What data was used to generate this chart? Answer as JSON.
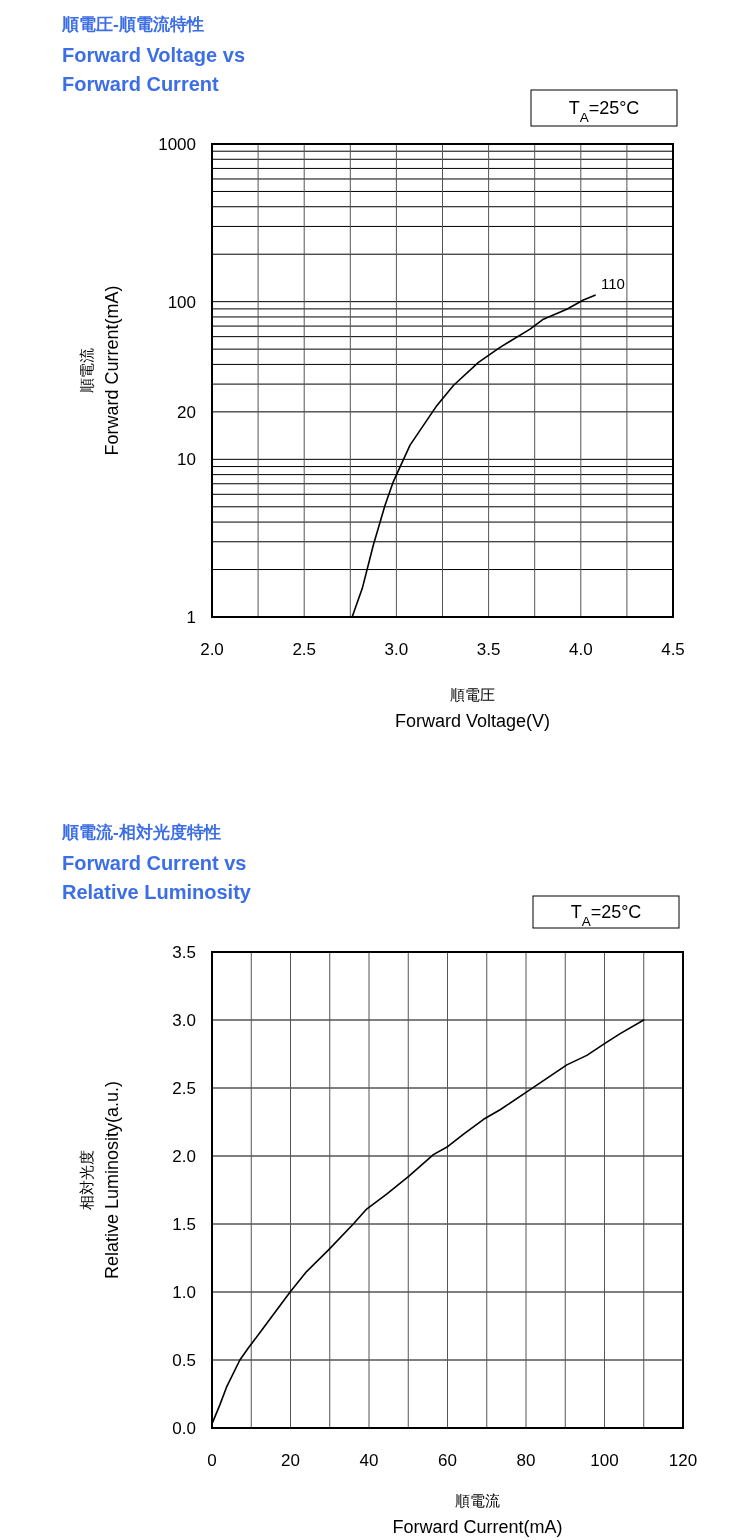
{
  "chart_data": [
    {
      "type": "line",
      "title": "順電圧-順電流特性",
      "subtitle": "Forward Voltage vs\nForward Current",
      "xlabel": "順電圧\nForward Voltage(V)",
      "ylabel": "順電流\nForward Current(mA)",
      "annotations": [
        "T$_{A}$=25°C",
        {
          "text": "110",
          "x": 4.077,
          "y": 110
        }
      ],
      "log": "y",
      "grid": true,
      "color": "#000000",
      "xlim": [
        2,
        4.5
      ],
      "xticks": [
        {
          "value": 2,
          "label": "2.0"
        },
        {
          "value": 2.5,
          "label": "2.5"
        },
        {
          "value": 3,
          "label": "3.0"
        },
        {
          "value": 3.5,
          "label": "3.5"
        },
        {
          "value": 4,
          "label": "4.0"
        },
        {
          "value": 4.5,
          "label": "4.5"
        }
      ],
      "ylim": [
        1,
        1000
      ],
      "yticks": [
        1,
        10,
        20,
        100,
        1000
      ],
      "x": [
        2.76,
        2.815,
        2.875,
        2.938,
        2.983,
        3.02,
        3.074,
        3.219,
        3.309,
        3.445,
        3.562,
        3.725,
        3.797,
        3.924,
        4.014,
        4.077
      ],
      "values": [
        1,
        1.52,
        2.86,
        5.1,
        7.2,
        8.95,
        12.3,
        21.9,
        29.4,
        41.2,
        51.3,
        67,
        77.4,
        89.5,
        102.5,
        110
      ]
    },
    {
      "type": "line",
      "title": "順電流-相対光度特性",
      "subtitle": "Forward Current vs\nRelative Luminosity",
      "xlabel": "順電流\nForward Current(mA)",
      "ylabel": "相対光度\nRelative Luminosity(a.u.)",
      "annotations": [
        "T$_{A}$=25°C"
      ],
      "grid": true,
      "color": "#000000",
      "xlim": [
        0,
        120
      ],
      "xticks": [
        0,
        20,
        40,
        60,
        80,
        100,
        120
      ],
      "ylim": [
        0,
        3.5
      ],
      "yticks": [
        {
          "value": 0,
          "label": "0.0"
        },
        {
          "value": 0.5,
          "label": "0.5"
        },
        {
          "value": 1,
          "label": "1.0"
        },
        {
          "value": 1.5,
          "label": "1.5"
        },
        {
          "value": 2,
          "label": "2.0"
        },
        {
          "value": 2.5,
          "label": "2.5"
        },
        {
          "value": 3,
          "label": "3.0"
        },
        {
          "value": 3.5,
          "label": "3.5"
        }
      ],
      "x": [
        0,
        2,
        3.7,
        7.1,
        9.3,
        12.7,
        19.9,
        24.1,
        29.7,
        36,
        39.4,
        44.5,
        50.1,
        56.4,
        60.1,
        64.1,
        69.2,
        73.4,
        80.1,
        90.4,
        95.5,
        100.2,
        104,
        110
      ],
      "values": [
        0.03,
        0.17,
        0.3,
        0.5,
        0.59,
        0.72,
        1,
        1.15,
        1.31,
        1.5,
        1.61,
        1.72,
        1.85,
        2.01,
        2.07,
        2.16,
        2.27,
        2.34,
        2.47,
        2.67,
        2.74,
        2.83,
        2.9,
        3
      ]
    }
  ]
}
